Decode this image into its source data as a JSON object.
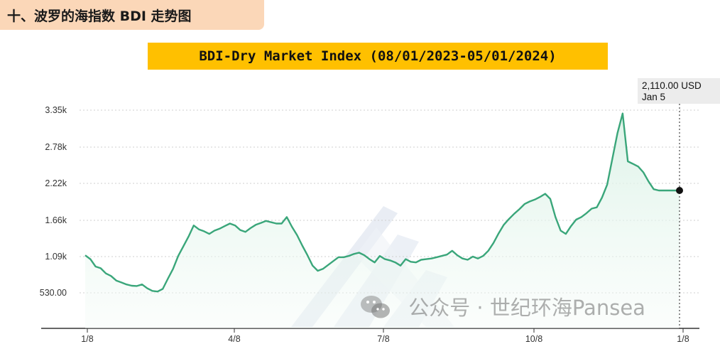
{
  "section_header": "十、波罗的海指数 BDI 走势图",
  "chart_title": "BDI-Dry Market Index (08/01/2023-05/01/2024)",
  "tooltip": {
    "value": "2,110.00 USD",
    "date": "Jan 5"
  },
  "watermark": {
    "text": "公众号 · 世纪环海Pansea",
    "icon": "wechat-icon"
  },
  "chart_data": {
    "type": "area",
    "title": "BDI-Dry Market Index (08/01/2023-05/01/2024)",
    "xlabel": "",
    "ylabel": "",
    "x_tick_labels": [
      "1/8",
      "4/8",
      "7/8",
      "10/8",
      "1/8"
    ],
    "y_tick_labels": [
      "3.35k",
      "2.78k",
      "2.22k",
      "1.66k",
      "1.09k",
      "530.00"
    ],
    "ylim": [
      0,
      3350
    ],
    "grid": true,
    "line_color": "#3aa67a",
    "fill_color": "#e6f5ee",
    "series": [
      {
        "values": [
          1109,
          1050,
          936,
          910,
          830,
          790,
          720,
          690,
          660,
          640,
          635,
          660,
          600,
          560,
          550,
          590,
          750,
          900,
          1100,
          1250,
          1400,
          1570,
          1510,
          1480,
          1440,
          1490,
          1520,
          1560,
          1600,
          1570,
          1500,
          1470,
          1530,
          1580,
          1610,
          1640,
          1620,
          1600,
          1600,
          1700,
          1550,
          1420,
          1260,
          1110,
          950,
          870,
          900,
          960,
          1020,
          1080,
          1080,
          1100,
          1130,
          1150,
          1110,
          1050,
          1000,
          1100,
          1050,
          1030,
          1000,
          950,
          1050,
          1010,
          1000,
          1040,
          1050,
          1060,
          1080,
          1100,
          1120,
          1180,
          1110,
          1060,
          1040,
          1090,
          1060,
          1100,
          1180,
          1300,
          1450,
          1580,
          1670,
          1750,
          1820,
          1900,
          1940,
          1970,
          2010,
          2060,
          1980,
          1700,
          1490,
          1440,
          1560,
          1660,
          1700,
          1760,
          1830,
          1850,
          2000,
          2200,
          2600,
          3000,
          3300,
          2560,
          2520,
          2480,
          2390,
          2250,
          2130,
          2110,
          2110,
          2110,
          2110,
          2110
        ]
      }
    ],
    "last_point": {
      "label": "Jan 5",
      "value": 2110
    }
  }
}
